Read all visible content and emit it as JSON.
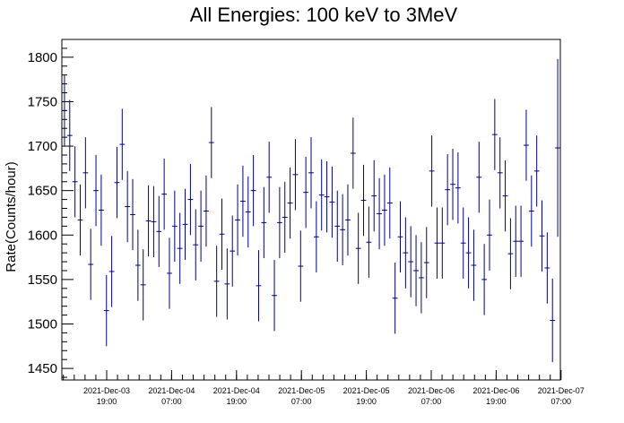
{
  "chart_data": {
    "type": "scatter",
    "style": "error-bar histogram (ROOT)",
    "title": "All Energies:  100 keV to 3MeV",
    "xlabel": "",
    "ylabel": "Rate(Counts/hour)",
    "ylim": [
      1437,
      1820
    ],
    "y_ticks": [
      1450,
      1500,
      1550,
      1600,
      1650,
      1700,
      1750,
      1800
    ],
    "x_ticks": [
      {
        "date": "2021-Dec-03",
        "time": "19:00"
      },
      {
        "date": "2021-Dec-04",
        "time": "07:00"
      },
      {
        "date": "2021-Dec-04",
        "time": "19:00"
      },
      {
        "date": "2021-Dec-05",
        "time": "07:00"
      },
      {
        "date": "2021-Dec-05",
        "time": "19:00"
      },
      {
        "date": "2021-Dec-06",
        "time": "07:00"
      },
      {
        "date": "2021-Dec-06",
        "time": "19:00"
      },
      {
        "date": "2021-Dec-07",
        "time": "07:00"
      }
    ],
    "marker_color": "#00008b",
    "grid": false,
    "values": [
      1740,
      1712,
      1660,
      1617,
      1670,
      1567,
      1650,
      1628,
      1515,
      1559,
      1659,
      1702,
      1632,
      1623,
      1566,
      1544,
      1616,
      1615,
      1604,
      1646,
      1557,
      1610,
      1585,
      1612,
      1640,
      1589,
      1610,
      1627,
      1704,
      1548,
      1601,
      1545,
      1582,
      1617,
      1638,
      1626,
      1650,
      1543,
      1614,
      1665,
      1532,
      1614,
      1620,
      1636,
      1668,
      1565,
      1648,
      1670,
      1598,
      1645,
      1643,
      1637,
      1610,
      1606,
      1617,
      1692,
      1585,
      1639,
      1592,
      1644,
      1624,
      1628,
      1636,
      1529,
      1598,
      1580,
      1570,
      1560,
      1552,
      1569,
      1672,
      1591,
      1591,
      1651,
      1657,
      1653,
      1591,
      1580,
      1566,
      1665,
      1550,
      1600,
      1713,
      1670,
      1644,
      1579,
      1593,
      1593,
      1701,
      1627,
      1672,
      1599,
      1563,
      1504,
      1698
    ],
    "errors": [
      40,
      40,
      40,
      40,
      40,
      40,
      40,
      40,
      40,
      40,
      40,
      40,
      40,
      40,
      40,
      40,
      40,
      40,
      40,
      40,
      40,
      40,
      40,
      40,
      40,
      40,
      40,
      40,
      40,
      40,
      40,
      40,
      40,
      40,
      40,
      40,
      40,
      40,
      40,
      40,
      40,
      40,
      40,
      40,
      40,
      40,
      40,
      40,
      40,
      40,
      40,
      40,
      40,
      40,
      40,
      40,
      40,
      40,
      40,
      40,
      40,
      40,
      40,
      40,
      40,
      40,
      40,
      40,
      40,
      40,
      40,
      40,
      40,
      40,
      40,
      40,
      40,
      40,
      40,
      40,
      40,
      40,
      40,
      40,
      40,
      40,
      40,
      40,
      40,
      40,
      40,
      40,
      40,
      47,
      100
    ]
  }
}
